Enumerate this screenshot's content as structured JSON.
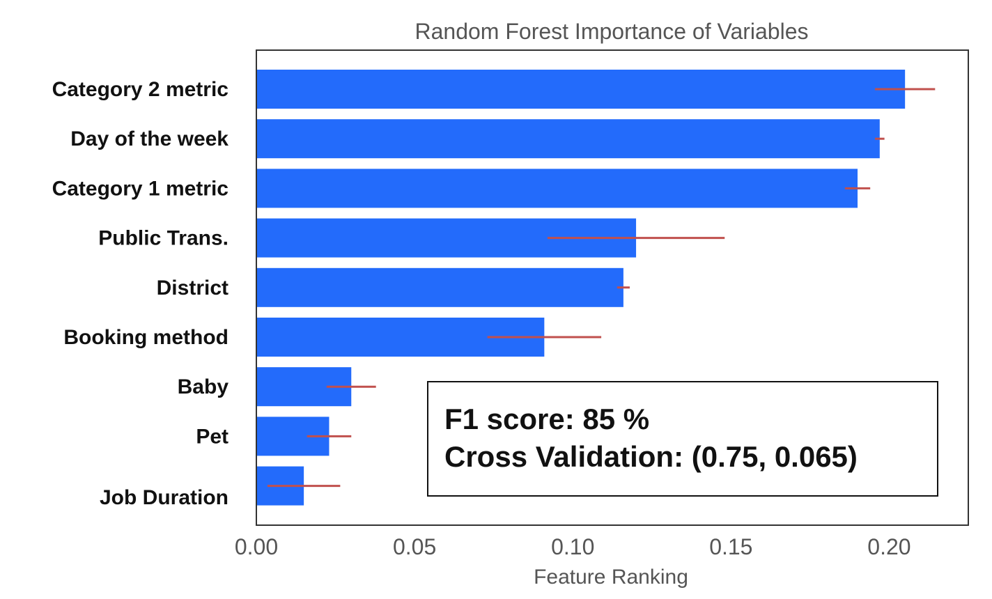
{
  "chart_data": {
    "type": "bar",
    "orientation": "horizontal",
    "title": "Random Forest Importance of Variables",
    "xlabel": "Feature Ranking",
    "ylabel": "",
    "xlim": [
      0,
      0.225
    ],
    "xticks": [
      0.0,
      0.05,
      0.1,
      0.15,
      0.2
    ],
    "xtick_labels": [
      "0.00",
      "0.05",
      "0.10",
      "0.15",
      "0.20"
    ],
    "grid": false,
    "categories": [
      "Category 2 metric",
      "Day of the week",
      "Category 1 metric",
      "Public Trans.",
      "District",
      "Booking method",
      "Baby",
      "Pet",
      "Job Duration"
    ],
    "values": [
      0.205,
      0.197,
      0.19,
      0.12,
      0.116,
      0.091,
      0.03,
      0.023,
      0.015
    ],
    "errors": [
      0.0095,
      0.0015,
      0.004,
      0.028,
      0.002,
      0.018,
      0.0078,
      0.007,
      0.0115
    ],
    "bar_color": "#236bfb",
    "error_color": "#c0504d",
    "annotation": {
      "line1": "F1 score: 85 %",
      "line2": "Cross Validation: (0.75, 0.065)"
    }
  }
}
